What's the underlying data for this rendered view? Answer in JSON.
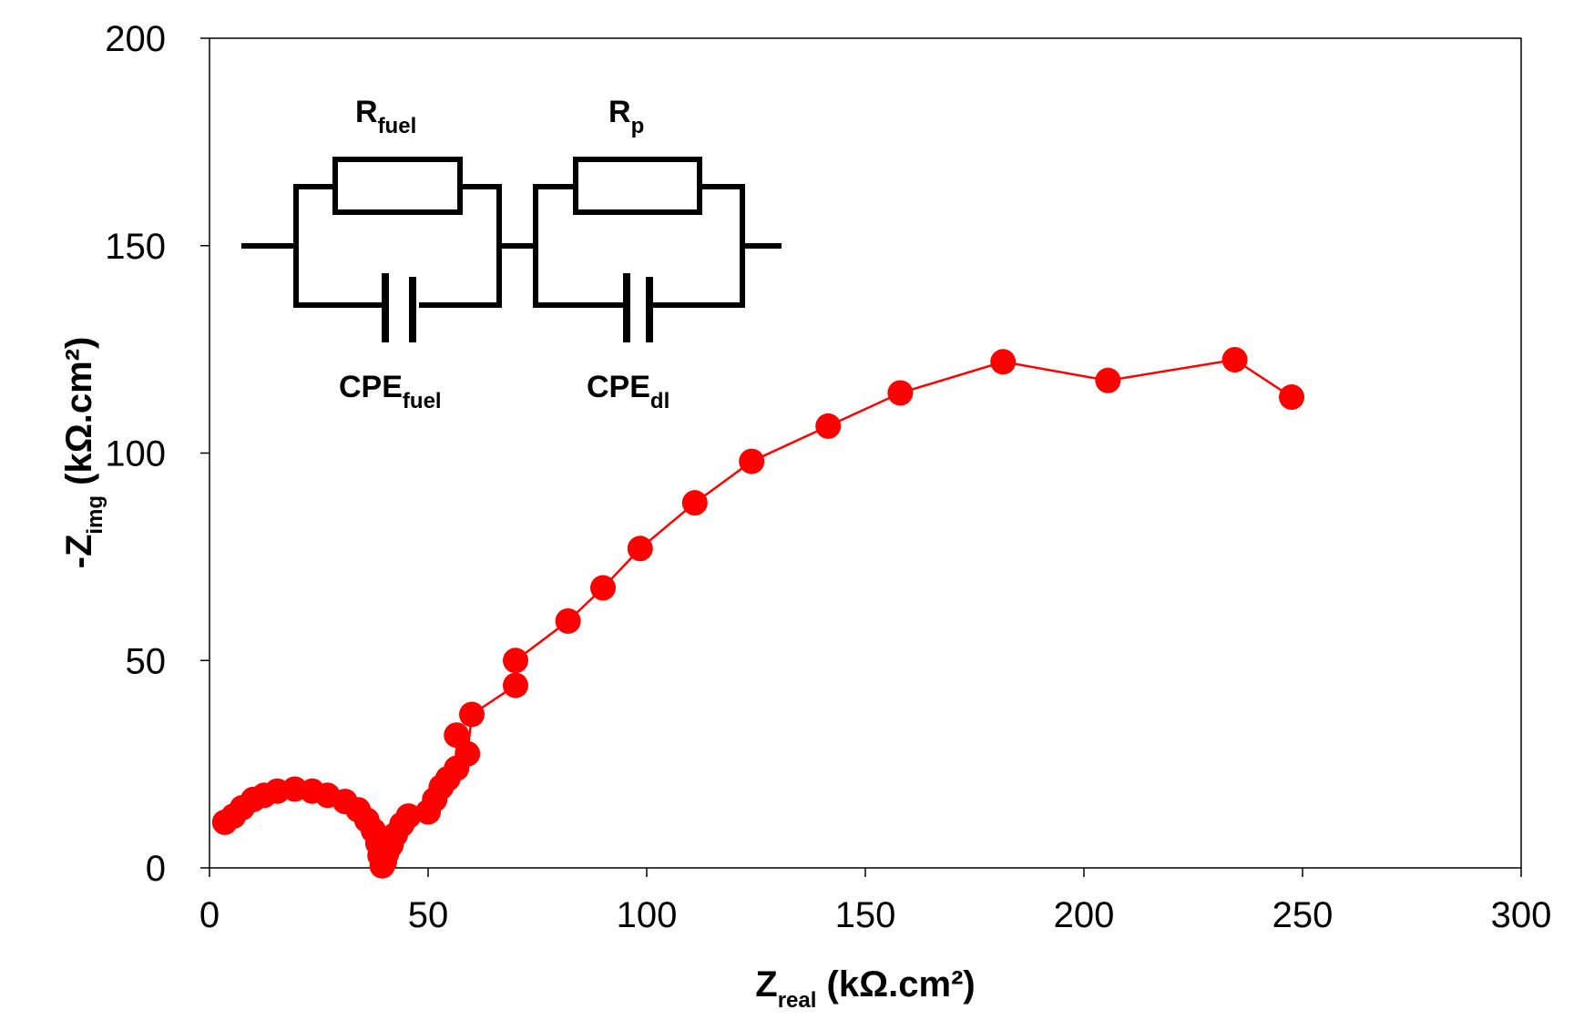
{
  "chart_data": {
    "type": "scatter",
    "title": "",
    "xlabel": {
      "main": "Z",
      "sub": "real",
      "unit": " (kΩ.cm²)"
    },
    "ylabel": {
      "main": "-Z",
      "sub": "img",
      "unit": " (kΩ.cm²)"
    },
    "xlim": [
      0,
      300
    ],
    "ylim": [
      0,
      200
    ],
    "xticks": [
      0,
      50,
      100,
      150,
      200,
      250,
      300
    ],
    "yticks": [
      0,
      50,
      100,
      150,
      200
    ],
    "grid": false,
    "series": [
      {
        "name": "impedance",
        "color": "#ff0000",
        "marker": "circle",
        "line": true,
        "points": [
          [
            3.5,
            11.0
          ],
          [
            5.5,
            12.5
          ],
          [
            7.5,
            14.5
          ],
          [
            10.0,
            16.5
          ],
          [
            12.5,
            17.5
          ],
          [
            15.5,
            18.5
          ],
          [
            19.5,
            19.0
          ],
          [
            23.5,
            18.5
          ],
          [
            27.0,
            17.5
          ],
          [
            31.0,
            16.0
          ],
          [
            34.0,
            14.0
          ],
          [
            36.0,
            11.5
          ],
          [
            37.5,
            9.0
          ],
          [
            38.5,
            6.0
          ],
          [
            39.0,
            3.0
          ],
          [
            39.5,
            0.5
          ],
          [
            40.0,
            1.5
          ],
          [
            40.5,
            3.5
          ],
          [
            41.5,
            5.5
          ],
          [
            42.5,
            8.0
          ],
          [
            44.0,
            10.5
          ],
          [
            45.5,
            12.5
          ],
          [
            50.0,
            13.5
          ],
          [
            51.5,
            16.5
          ],
          [
            53.0,
            19.5
          ],
          [
            54.5,
            21.5
          ],
          [
            56.5,
            24.0
          ],
          [
            56.5,
            32.0
          ],
          [
            59.0,
            27.5
          ],
          [
            60.0,
            37.0
          ],
          [
            70.0,
            44.0
          ],
          [
            70.0,
            50.0
          ],
          [
            82.0,
            59.5
          ],
          [
            90.0,
            67.5
          ],
          [
            98.5,
            77.0
          ],
          [
            111.0,
            88.0
          ],
          [
            124.0,
            98.0
          ],
          [
            141.5,
            106.5
          ],
          [
            158.0,
            114.5
          ],
          [
            181.5,
            122.0
          ],
          [
            205.5,
            117.5
          ],
          [
            234.5,
            122.5
          ],
          [
            247.5,
            113.5
          ]
        ]
      }
    ],
    "inset_circuit": {
      "labels": {
        "r_fuel": {
          "main": "R",
          "sub": "fuel"
        },
        "r_p": {
          "main": "R",
          "sub": "p"
        },
        "cpe_fuel": {
          "main": "CPE",
          "sub": "fuel"
        },
        "cpe_dl": {
          "main": "CPE",
          "sub": "dl"
        }
      }
    }
  }
}
